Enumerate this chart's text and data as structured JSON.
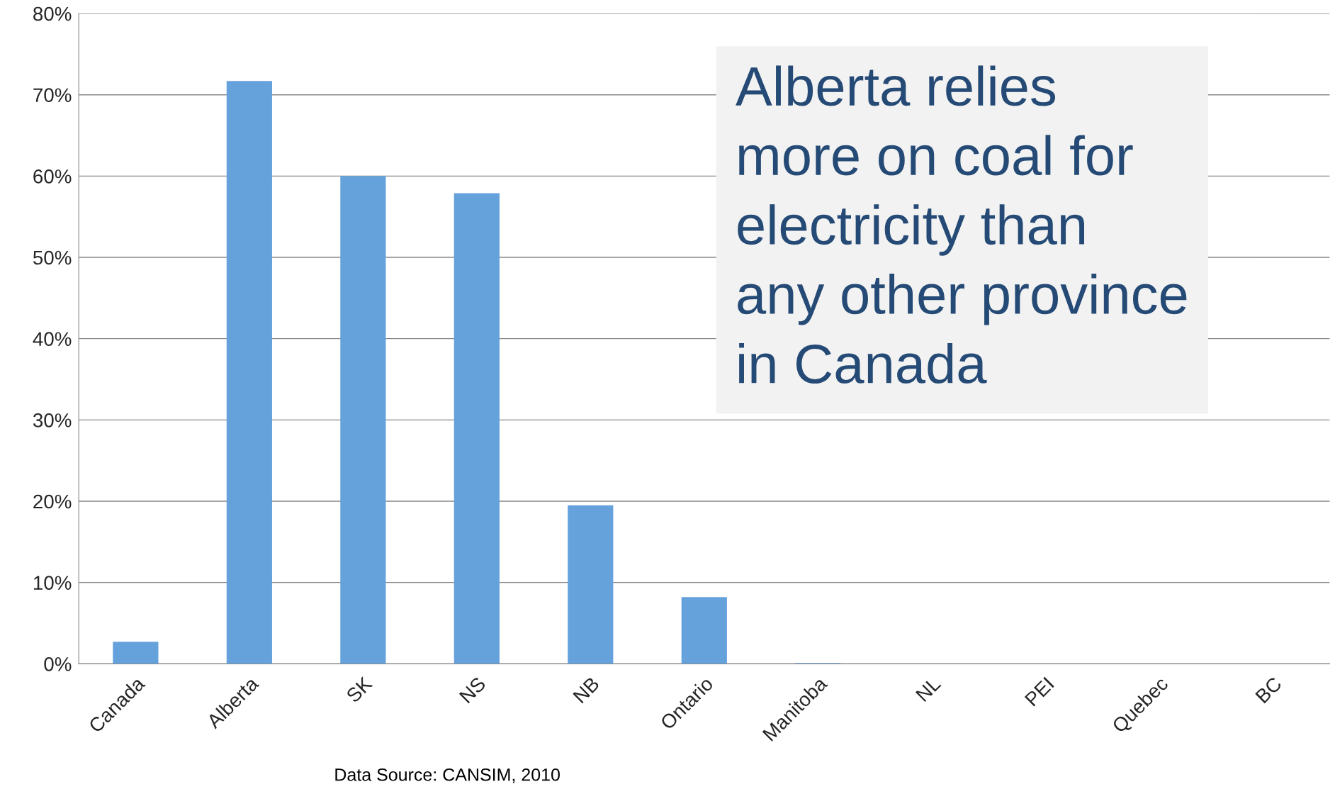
{
  "chart_data": {
    "type": "bar",
    "categories": [
      "Canada",
      "Alberta",
      "SK",
      "NS",
      "NB",
      "Ontario",
      "Manitoba",
      "NL",
      "PEI",
      "Quebec",
      "BC"
    ],
    "values": [
      2.7,
      71.7,
      60.0,
      57.9,
      19.5,
      8.2,
      0.1,
      0,
      0,
      0,
      0
    ],
    "color": "#65a2dc",
    "ylim": [
      0,
      80
    ],
    "yticks": [
      {
        "value": 0,
        "label": "0%"
      },
      {
        "value": 10,
        "label": "10%"
      },
      {
        "value": 20,
        "label": "20%"
      },
      {
        "value": 30,
        "label": "30%"
      },
      {
        "value": 40,
        "label": "40%"
      },
      {
        "value": 50,
        "label": "50%"
      },
      {
        "value": 60,
        "label": "60%"
      },
      {
        "value": 70,
        "label": "70%"
      },
      {
        "value": 80,
        "label": "80%"
      }
    ],
    "grid": "y",
    "legend": false,
    "annotations": [
      "Alberta relies\nmore on coal for\nelectricity than\nany other province\nin Canada",
      "Data Source: CANSIM, 2010"
    ]
  }
}
